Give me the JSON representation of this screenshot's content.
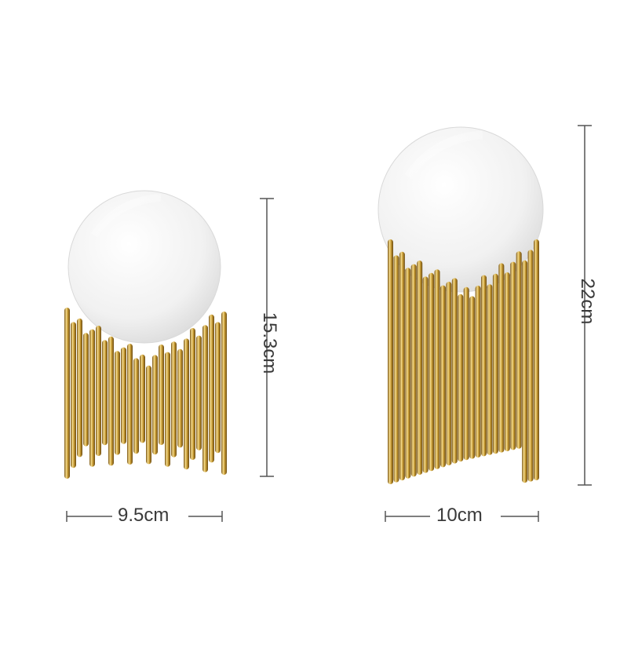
{
  "products": [
    {
      "name": "small-sphere-ornament",
      "height_label": "15.3cm",
      "width_label": "9.5cm"
    },
    {
      "name": "large-sphere-ornament",
      "height_label": "22cm",
      "width_label": "10cm"
    }
  ],
  "colors": {
    "background": "#ffffff",
    "gold_light": "#f3d98a",
    "gold_mid": "#c9a23f",
    "gold_dark": "#7d5a16",
    "crystal": "#f4f4f4",
    "dimension_line": "#555555"
  }
}
